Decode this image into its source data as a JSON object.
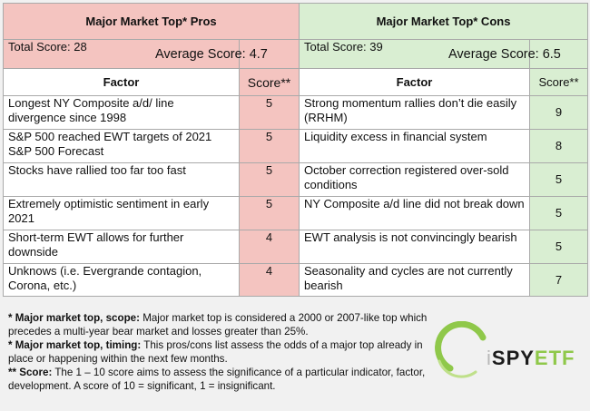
{
  "pros": {
    "title": "Major Market Top* Pros",
    "total_score": "Total Score: 28",
    "average_score": "Average Score: 4.7",
    "factor_header": "Factor",
    "score_header": "Score**",
    "rows": [
      {
        "factor": "Longest NY Composite a/d/ line divergence since 1998",
        "score": "5"
      },
      {
        "factor": "S&P 500 reached EWT targets of 2021 S&P 500 Forecast",
        "score": "5"
      },
      {
        "factor": "Stocks have rallied too far too fast",
        "score": "5"
      },
      {
        "factor": "Extremely optimistic sentiment in early 2021",
        "score": "5"
      },
      {
        "factor": "Short-term EWT allows for further downside",
        "score": "4"
      },
      {
        "factor": "Unknows (i.e. Evergrande contagion, Corona, etc.)",
        "score": "4"
      }
    ]
  },
  "cons": {
    "title": "Major Market Top* Cons",
    "total_score": "Total Score: 39",
    "average_score": "Average Score: 6.5",
    "factor_header": "Factor",
    "score_header": "Score**",
    "rows": [
      {
        "factor": "Strong momentum rallies don’t die easily (RRHM)",
        "score": "9"
      },
      {
        "factor": "Liquidity excess in financial system",
        "score": "8"
      },
      {
        "factor": "October correction registered over-sold conditions",
        "score": "5"
      },
      {
        "factor": "NY Composite a/d line did not break down",
        "score": "5"
      },
      {
        "factor": "EWT analysis is not convincingly bearish",
        "score": "5"
      },
      {
        "factor": "Seasonality and cycles are not currently bearish",
        "score": "7"
      }
    ]
  },
  "footnotes": [
    {
      "label": "* Major market top, scope:",
      "text": " Major market top is considered a 2000 or 2007-like top which precedes a multi-year bear market and losses greater than 25%."
    },
    {
      "label": "* Major market top, timing:",
      "text": " This pros/cons list assess the odds of a major top already in place or happening within the next few months."
    },
    {
      "label": "** Score:",
      "text": " The 1 – 10 score aims to assess the significance of a particular indicator, factor, development. A score of 10 = significant, 1 = insignificant."
    }
  ],
  "logo": {
    "part_i": "i",
    "part_spy": "SPY",
    "part_etf": "ETF",
    "colors": {
      "ring": "#8fc84a",
      "dark": "#1b1b1b",
      "grey": "#b7b7b7"
    }
  },
  "colors": {
    "pros_bg": "#f4c4c0",
    "cons_bg": "#d9eed2"
  }
}
